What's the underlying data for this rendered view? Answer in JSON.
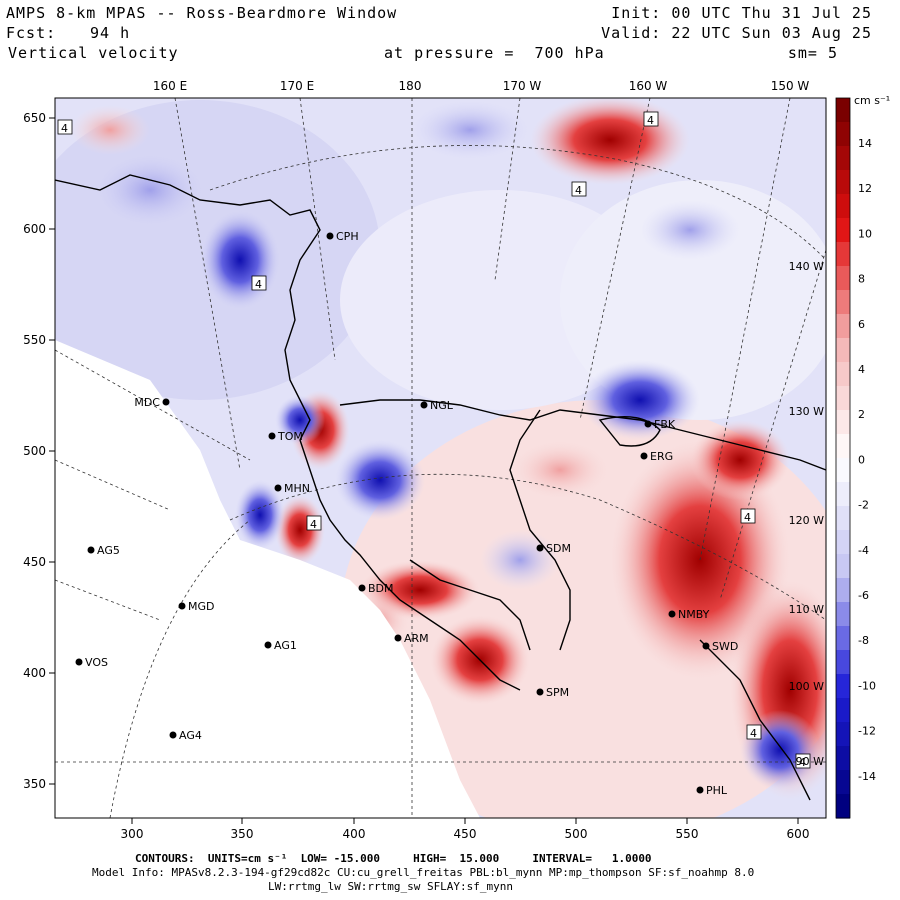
{
  "header": {
    "title": "AMPS 8-km MPAS -- Ross-Beardmore Window",
    "init": "Init: 00 UTC Thu 31 Jul 25",
    "fcst_label": "Fcst:",
    "fcst_value": "94 h",
    "valid": "Valid: 22 UTC Sun 03 Aug 25",
    "field": "Vertical velocity",
    "pressure": "at pressure =  700 hPa",
    "smooth": "sm= 5"
  },
  "top_axis_labels": [
    "160 E",
    "170 E",
    "180",
    "170 W",
    "160 W",
    "150 W"
  ],
  "left_axis_labels": [
    "650",
    "600",
    "550",
    "500",
    "450",
    "400",
    "350"
  ],
  "bottom_axis_labels": [
    "300",
    "350",
    "400",
    "450",
    "500",
    "550",
    "600"
  ],
  "right_meridian_labels": [
    "140 W",
    "130 W",
    "120 W",
    "110 W",
    "100 W",
    "90 W"
  ],
  "colorbar": {
    "unit": "cm s⁻¹",
    "labels": [
      "14",
      "12",
      "10",
      "8",
      "6",
      "4",
      "2",
      "0",
      "-2",
      "-4",
      "-6",
      "-8",
      "-10",
      "-12",
      "-14"
    ],
    "colors": {
      "darkred": "#7a0000",
      "red": "#e01010",
      "pink": "#f4b4b4",
      "white": "#ffffff",
      "lightblue": "#c4c4f2",
      "blue": "#2020d8",
      "darkblue": "#000080"
    }
  },
  "stations": [
    "MDC",
    "NGL",
    "TOM",
    "FBK",
    "ERG",
    "MHN",
    "SDM",
    "BDM",
    "NMBY",
    "ARM",
    "SPM",
    "AG5",
    "MGD",
    "AG1",
    "VOS",
    "AG4",
    "CPH",
    "SWD",
    "PHL"
  ],
  "contour_box_label": "4",
  "footer": {
    "contours": "CONTOURS:  UNITS=cm s⁻¹  LOW= -15.000     HIGH=  15.000     INTERVAL=   1.0000",
    "model_info": "Model Info: MPASv8.2.3-194-gf29cd82c CU:cu_grell_freitas PBL:bl_mynn MP:mp_thompson SF:sf_noahmp 8.0",
    "model_info2": "LW:rrtmg_lw SW:rrtmg_sw SFLAY:sf_mynn"
  }
}
